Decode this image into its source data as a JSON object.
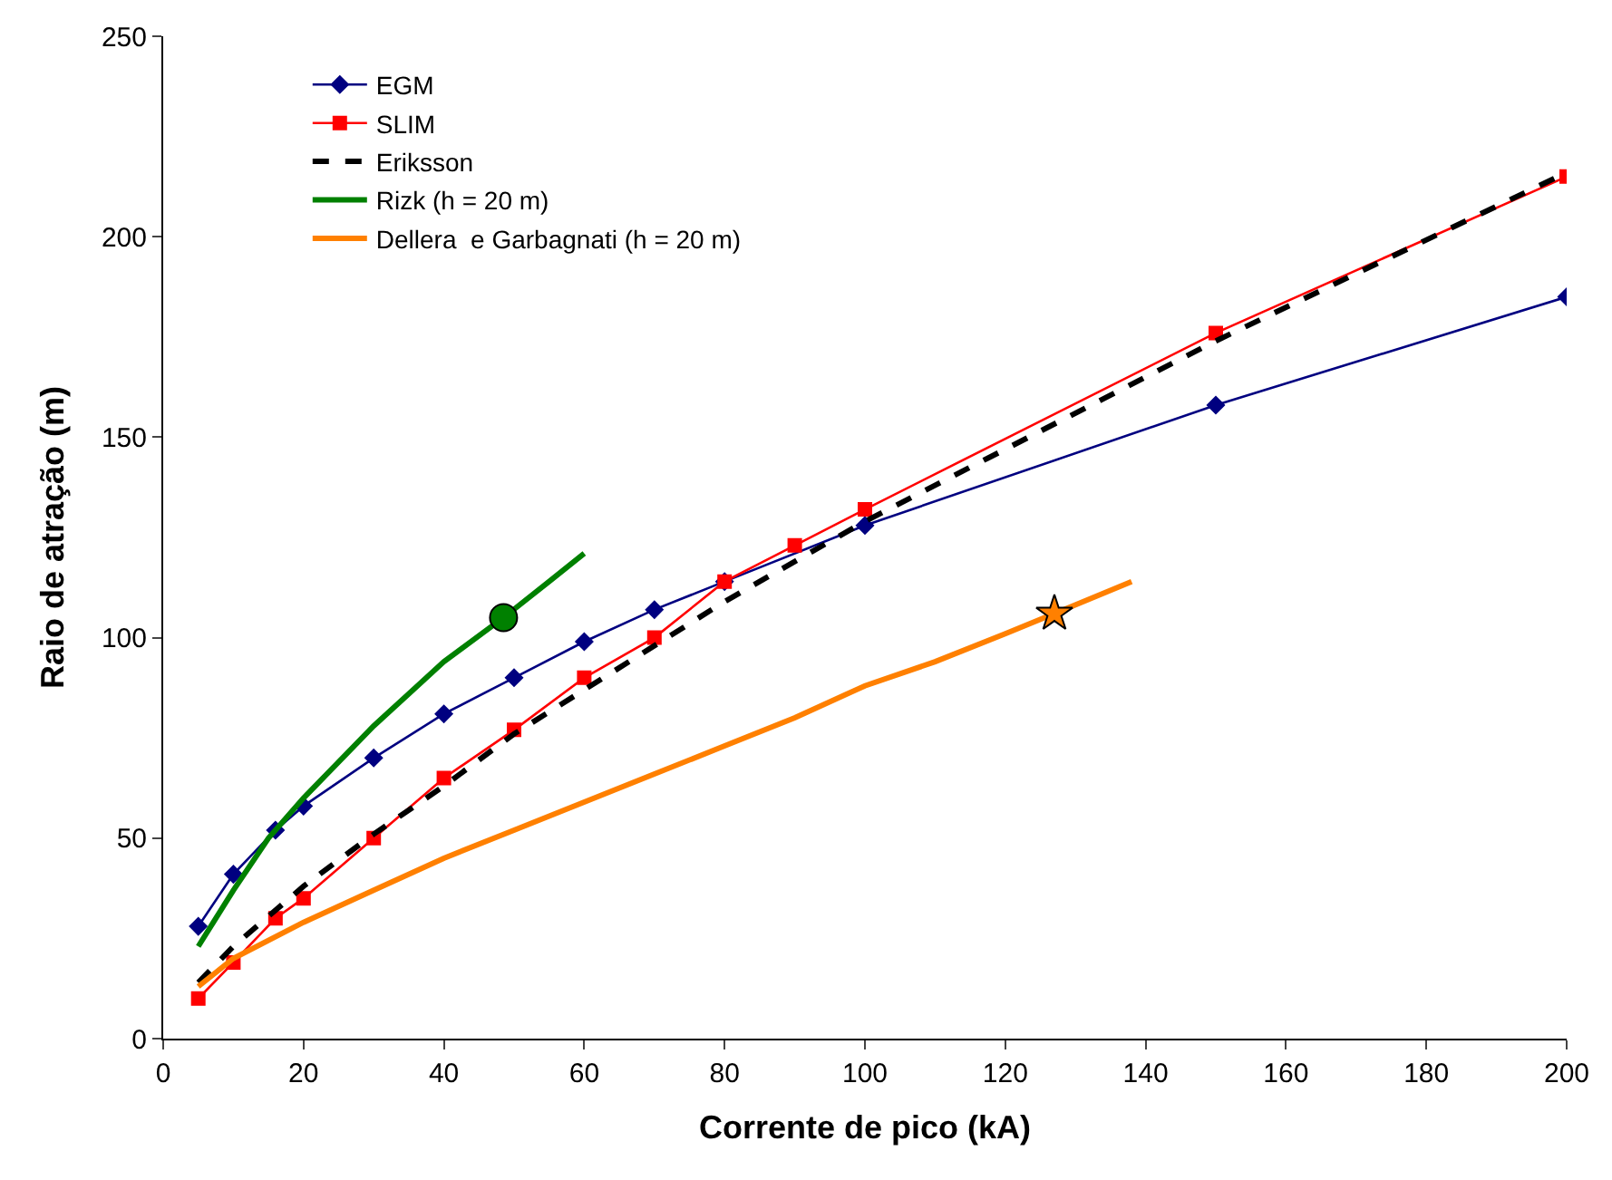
{
  "chart_data": {
    "type": "line",
    "xlabel": "Corrente de pico (kA)",
    "ylabel": "Raio de atração (m)",
    "xlim": [
      0,
      200
    ],
    "xticks": [
      0,
      20,
      40,
      60,
      80,
      100,
      120,
      140,
      160,
      180,
      200
    ],
    "ylim": [
      0,
      250
    ],
    "yticks": [
      0,
      50,
      100,
      150,
      200,
      250
    ],
    "legend": "top left",
    "series": [
      {
        "name": "EGM",
        "color": "#000080",
        "marker": "diamond",
        "line_style": "solid",
        "x": [
          5,
          10,
          16,
          20,
          30,
          40,
          50,
          60,
          70,
          80,
          100,
          150,
          200
        ],
        "values": [
          28,
          41,
          52,
          58,
          70,
          81,
          90,
          99,
          107,
          114,
          128,
          158,
          185
        ]
      },
      {
        "name": "SLIM",
        "color": "#ff0000",
        "marker": "square",
        "line_style": "solid",
        "x": [
          5,
          10,
          16,
          20,
          30,
          40,
          50,
          60,
          70,
          80,
          90,
          100,
          150,
          200
        ],
        "values": [
          10,
          19,
          30,
          35,
          50,
          65,
          77,
          90,
          100,
          114,
          123,
          132,
          176,
          215
        ]
      },
      {
        "name": "Eriksson",
        "color": "#000000",
        "marker": "none",
        "line_style": "dashed",
        "x": [
          5,
          10,
          20,
          30,
          40,
          50,
          60,
          80,
          100,
          150,
          200
        ],
        "values": [
          14,
          23,
          38,
          51,
          63,
          76,
          87,
          109,
          129,
          174,
          216
        ]
      },
      {
        "name": "Rizk (h = 20 m)",
        "color": "#008000",
        "marker": "none",
        "line_style": "solid",
        "x": [
          5,
          10,
          15,
          20,
          30,
          40,
          48.5,
          55,
          60
        ],
        "values": [
          23,
          37,
          50,
          60,
          78,
          94,
          105,
          114,
          121
        ]
      },
      {
        "name": "Dellera  e Garbagnati (h = 20 m)",
        "color": "#ff8000",
        "marker": "none",
        "line_style": "solid",
        "x": [
          5,
          10,
          20,
          30,
          40,
          50,
          60,
          70,
          80,
          90,
          100,
          110,
          120,
          127,
          138
        ],
        "values": [
          13,
          20,
          29,
          37,
          45,
          52,
          59,
          66,
          73,
          80,
          88,
          94,
          101,
          106,
          114
        ]
      },
      {
        "type": "scatter",
        "color": "#008000",
        "marker": "circle",
        "x": [
          48.5
        ],
        "values": [
          105
        ]
      },
      {
        "type": "scatter",
        "color": "#ff8000",
        "marker": "star",
        "x": [
          127
        ],
        "values": [
          106
        ]
      }
    ]
  }
}
